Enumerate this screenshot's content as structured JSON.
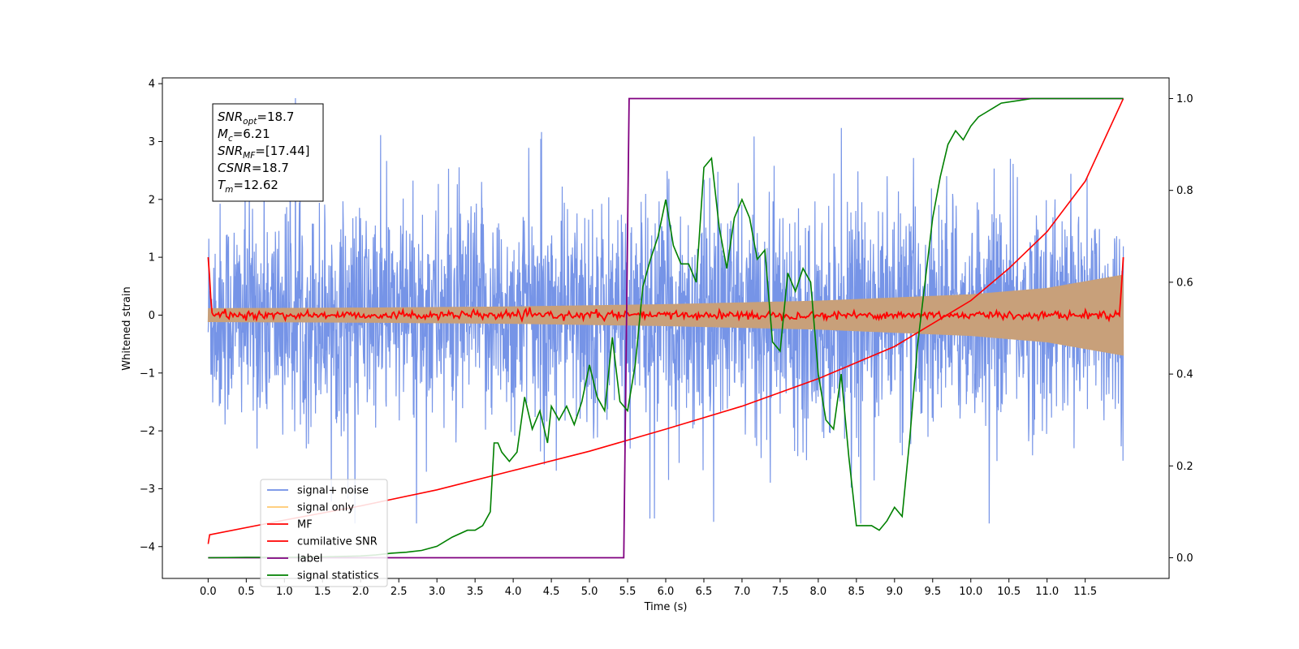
{
  "chart_data": {
    "type": "line",
    "xlabel": "Time (s)",
    "ylabel": "Whitened strain",
    "xlim": [
      -0.6,
      12.6
    ],
    "ylim": [
      -4.55,
      4.1
    ],
    "y2lim": [
      -0.045,
      1.045
    ],
    "x_ticks": [
      "0.0",
      "0.5",
      "1.0",
      "1.5",
      "2.0",
      "2.5",
      "3.0",
      "3.5",
      "4.0",
      "4.5",
      "5.0",
      "5.5",
      "6.0",
      "6.5",
      "7.0",
      "7.5",
      "8.0",
      "8.5",
      "9.0",
      "9.5",
      "10.0",
      "10.5",
      "11.0",
      "11.5"
    ],
    "y_ticks": [
      "4",
      "3",
      "2",
      "1",
      "0",
      "−1",
      "−2",
      "−3",
      "−4"
    ],
    "y2_ticks": [
      "1.0",
      "0.8",
      "0.6",
      "0.4",
      "0.2",
      "0.0"
    ],
    "info_box": [
      {
        "sym": "SNR",
        "sub": "opt",
        "value": "=18.7"
      },
      {
        "sym": "M",
        "sub": "c",
        "value": "=6.21"
      },
      {
        "sym": "SNR",
        "sub": "MF",
        "value": "=[17.44]"
      },
      {
        "sym": "CSNR",
        "sub": "",
        "value": "=18.7"
      },
      {
        "sym": "T",
        "sub": "m",
        "value": "=12.62"
      }
    ],
    "legend": {
      "placement": "lower-left",
      "entries": [
        {
          "label": "signal+ noise",
          "color": "#6f8ee6"
        },
        {
          "label": "signal only",
          "color": "#ffc86e"
        },
        {
          "label": "MF",
          "color": "#ff0000"
        },
        {
          "label": "cumilative SNR",
          "color": "#ff0000"
        },
        {
          "label": "label",
          "color": "#800080"
        },
        {
          "label": "signal statistics",
          "color": "#008000"
        }
      ]
    },
    "series": [
      {
        "name": "signal+ noise",
        "axis": "left",
        "color": "#6f8ee6",
        "description_range": [
          -3.6,
          3.75
        ],
        "x_range": [
          0.0,
          12.0
        ]
      },
      {
        "name": "signal only",
        "axis": "left",
        "color": "#c8a07a",
        "envelope": {
          "x": [
            0,
            2,
            4,
            6,
            8,
            10,
            11,
            12
          ],
          "amp": [
            0.12,
            0.13,
            0.15,
            0.19,
            0.25,
            0.36,
            0.47,
            0.7
          ]
        }
      },
      {
        "name": "MF",
        "axis": "left",
        "color": "#ff0000",
        "x_range": [
          0.0,
          12.0
        ],
        "center": 0.0,
        "edge_value": 1.0
      },
      {
        "name": "cumilative SNR",
        "axis": "right",
        "color": "#ff0000",
        "x": [
          0.0,
          0.02,
          1,
          2,
          3,
          4,
          5,
          6,
          7,
          8,
          9,
          10,
          10.5,
          11,
          11.5,
          12.0
        ],
        "y": [
          0.03,
          0.05,
          0.082,
          0.113,
          0.148,
          0.19,
          0.232,
          0.28,
          0.33,
          0.39,
          0.46,
          0.56,
          0.63,
          0.71,
          0.82,
          1.0
        ]
      },
      {
        "name": "label",
        "axis": "right",
        "color": "#800080",
        "x": [
          0.0,
          5.45,
          5.52,
          12.0
        ],
        "y": [
          0.0,
          0.0,
          1.0,
          1.0
        ]
      },
      {
        "name": "signal statistics",
        "axis": "right",
        "color": "#008000",
        "x": [
          0.0,
          0.5,
          1.0,
          1.5,
          2.0,
          2.2,
          2.4,
          2.6,
          2.8,
          3.0,
          3.2,
          3.4,
          3.5,
          3.6,
          3.7,
          3.75,
          3.8,
          3.85,
          3.95,
          4.05,
          4.15,
          4.25,
          4.35,
          4.45,
          4.5,
          4.6,
          4.7,
          4.8,
          4.9,
          5.0,
          5.1,
          5.2,
          5.3,
          5.4,
          5.5,
          5.6,
          5.7,
          5.8,
          5.9,
          6.0,
          6.1,
          6.2,
          6.3,
          6.4,
          6.5,
          6.6,
          6.7,
          6.8,
          6.9,
          7.0,
          7.1,
          7.2,
          7.3,
          7.4,
          7.5,
          7.6,
          7.7,
          7.8,
          7.9,
          8.0,
          8.1,
          8.2,
          8.3,
          8.4,
          8.5,
          8.6,
          8.7,
          8.8,
          8.9,
          9.0,
          9.1,
          9.2,
          9.3,
          9.4,
          9.5,
          9.6,
          9.7,
          9.8,
          9.9,
          10.0,
          10.1,
          10.2,
          10.3,
          10.4,
          10.6,
          10.8,
          11.0,
          11.5,
          12.0
        ],
        "y": [
          0.0,
          0.001,
          0.001,
          0.002,
          0.004,
          0.006,
          0.01,
          0.012,
          0.016,
          0.025,
          0.045,
          0.06,
          0.06,
          0.07,
          0.1,
          0.25,
          0.25,
          0.23,
          0.21,
          0.23,
          0.35,
          0.28,
          0.32,
          0.25,
          0.33,
          0.3,
          0.33,
          0.29,
          0.34,
          0.42,
          0.35,
          0.32,
          0.48,
          0.34,
          0.32,
          0.42,
          0.59,
          0.65,
          0.7,
          0.78,
          0.68,
          0.64,
          0.64,
          0.6,
          0.85,
          0.87,
          0.72,
          0.63,
          0.74,
          0.78,
          0.74,
          0.65,
          0.67,
          0.47,
          0.45,
          0.62,
          0.58,
          0.63,
          0.6,
          0.4,
          0.3,
          0.28,
          0.4,
          0.22,
          0.07,
          0.07,
          0.07,
          0.06,
          0.08,
          0.11,
          0.09,
          0.26,
          0.46,
          0.6,
          0.74,
          0.83,
          0.9,
          0.93,
          0.91,
          0.94,
          0.96,
          0.97,
          0.98,
          0.99,
          0.995,
          1.0,
          1.0,
          1.0,
          1.0
        ]
      }
    ]
  }
}
